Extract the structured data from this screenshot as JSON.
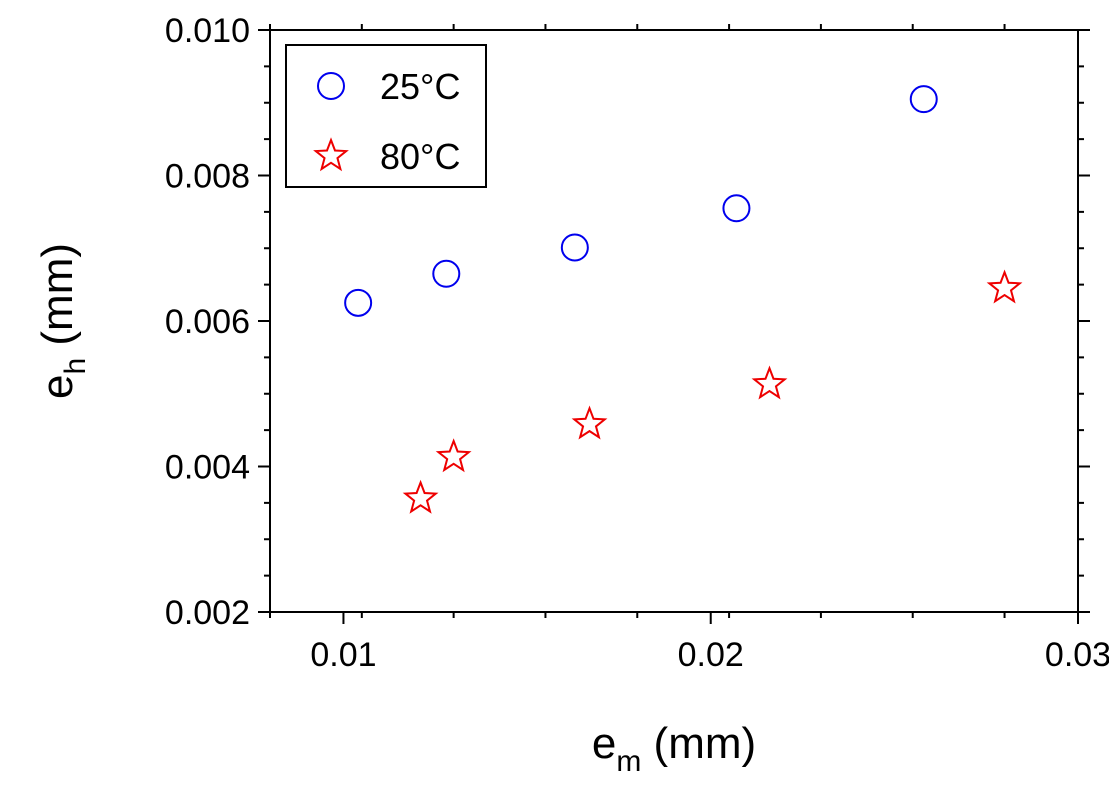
{
  "chart_data": {
    "type": "scatter",
    "title": "",
    "xlabel": {
      "base": "e",
      "sub": "m",
      "unit": " (mm)"
    },
    "ylabel": {
      "base": "e",
      "sub": "h",
      "unit": " (mm)"
    },
    "xlim": [
      0.008,
      0.03
    ],
    "ylim": [
      0.002,
      0.01
    ],
    "xticks": [
      0.01,
      0.02,
      0.03
    ],
    "xtick_labels": [
      "0.01",
      "0.02",
      "0.03"
    ],
    "yticks": [
      0.002,
      0.004,
      0.006,
      0.008,
      0.01
    ],
    "ytick_labels": [
      "0.002",
      "0.004",
      "0.006",
      "0.008",
      "0.010"
    ],
    "grid": false,
    "legend_position": "top-left",
    "series": [
      {
        "name": "25°C",
        "marker": "circle",
        "color": "#0000ee",
        "x": [
          0.0104,
          0.0128,
          0.0163,
          0.0207,
          0.0258
        ],
        "y": [
          0.00625,
          0.00665,
          0.00701,
          0.00755,
          0.00905
        ]
      },
      {
        "name": "80°C",
        "marker": "star",
        "color": "#ee0000",
        "x": [
          0.0121,
          0.013,
          0.0167,
          0.0216,
          0.028
        ],
        "y": [
          0.00356,
          0.00413,
          0.00458,
          0.00513,
          0.00645
        ]
      }
    ]
  }
}
